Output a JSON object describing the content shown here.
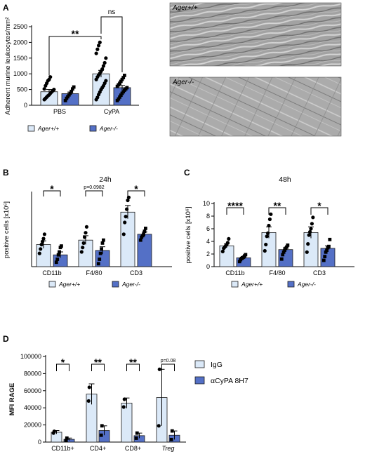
{
  "colors": {
    "light": "#dbe9f8",
    "dark": "#5470c6",
    "stroke": "#1a1a1a",
    "micro_bg": "#9d9d9d"
  },
  "chart_data": [
    {
      "panel": "A",
      "type": "bar",
      "ylabel": "Adherent murine leukocytes/mm²",
      "ylim": [
        0,
        2500
      ],
      "yticks": [
        0,
        500,
        1000,
        1500,
        2000,
        2500
      ],
      "categories": [
        "PBS",
        "CyPA"
      ],
      "legend": [
        "Ager+/+",
        "Ager-/-"
      ],
      "series": [
        {
          "name": "Ager+/+",
          "values": [
            430,
            1000
          ],
          "errors": [
            70,
            110
          ],
          "points": [
            [
              180,
              220,
              260,
              300,
              330,
              380,
              420,
              460,
              500,
              520,
              620,
              700,
              780,
              820,
              900
            ],
            [
              180,
              250,
              340,
              420,
              500,
              560,
              620,
              700,
              780,
              820,
              900,
              960,
              1020,
              1080,
              1150,
              1250,
              1350,
              1500,
              1650,
              1780,
              1900,
              2000
            ]
          ]
        },
        {
          "name": "Ager-/-",
          "values": [
            370,
            560
          ],
          "errors": [
            50,
            70
          ],
          "points": [
            [
              150,
              220,
              270,
              330,
              380,
              440,
              520,
              580
            ],
            [
              150,
              200,
              260,
              320,
              380,
              430,
              480,
              520,
              560,
              600,
              650,
              700,
              760,
              820,
              880,
              950
            ]
          ]
        }
      ],
      "annotations": [
        {
          "text": "**",
          "between": [
            "PBS Ager+/+",
            "CyPA Ager+/+"
          ]
        },
        {
          "text": "ns",
          "between": [
            "CyPA Ager+/+",
            "CyPA Ager-/-"
          ]
        }
      ]
    },
    {
      "panel": "B",
      "type": "bar",
      "title": "24h",
      "ylabel": "positive cells [x10⁶]",
      "ylim": [
        0,
        5
      ],
      "categories": [
        "CD11b",
        "F4/80",
        "CD3"
      ],
      "legend": [
        "Ager+/+",
        "Ager-/-"
      ],
      "series": [
        {
          "name": "Ager+/+",
          "values": [
            1.5,
            1.8,
            3.7
          ],
          "errors": [
            0.25,
            0.3,
            0.45
          ],
          "points": [
            [
              0.9,
              1.2,
              1.5,
              1.7,
              1.9,
              2.2
            ],
            [
              1.0,
              1.3,
              1.6,
              2.0,
              2.3,
              2.7
            ],
            [
              2.2,
              3.0,
              3.4,
              3.9,
              4.5,
              4.7
            ]
          ]
        },
        {
          "name": "Ager-/-",
          "values": [
            0.8,
            1.1,
            2.2
          ],
          "errors": [
            0.2,
            0.25,
            0.15
          ],
          "points": [
            [
              0.3,
              0.5,
              0.8,
              1.0,
              1.3,
              1.4
            ],
            [
              0.2,
              0.5,
              0.9,
              1.2,
              1.6,
              1.8
            ],
            [
              1.8,
              2.0,
              2.1,
              2.2,
              2.4,
              2.6
            ]
          ]
        }
      ],
      "annotations": [
        {
          "text": "*",
          "category": "CD11b"
        },
        {
          "text": "p=0.0982",
          "category": "F4/80"
        },
        {
          "text": "*",
          "category": "CD3"
        }
      ]
    },
    {
      "panel": "C",
      "type": "bar",
      "title": "48h",
      "ylabel": "positive cells [x10⁶]",
      "ylim": [
        0,
        10
      ],
      "yticks": [
        0,
        2,
        4,
        6,
        8,
        10
      ],
      "categories": [
        "CD11b",
        "F4/80",
        "CD3"
      ],
      "legend": [
        "Ager+/+",
        "Ager-/-"
      ],
      "series": [
        {
          "name": "Ager+/+",
          "values": [
            3.3,
            5.4,
            5.4
          ],
          "errors": [
            0.3,
            0.9,
            0.9
          ],
          "points": [
            [
              2.4,
              2.9,
              3.1,
              3.3,
              3.5,
              3.8,
              4.4
            ],
            [
              2.5,
              3.5,
              4.8,
              5.3,
              6.5,
              7.5,
              8.3
            ],
            [
              2.3,
              3.6,
              5.0,
              5.5,
              6.0,
              6.8,
              7.8
            ]
          ]
        },
        {
          "name": "Ager-/-",
          "values": [
            1.4,
            2.7,
            2.9
          ],
          "errors": [
            0.2,
            0.3,
            0.4
          ],
          "points": [
            [
              0.8,
              1.1,
              1.3,
              1.4,
              1.5,
              1.7,
              1.9
            ],
            [
              1.2,
              1.9,
              2.3,
              2.6,
              2.9,
              3.1,
              3.4
            ],
            [
              1.0,
              1.6,
              2.3,
              2.6,
              3.0,
              3.2,
              4.3
            ]
          ]
        }
      ],
      "annotations": [
        {
          "text": "****",
          "category": "CD11b"
        },
        {
          "text": "**",
          "category": "F4/80"
        },
        {
          "text": "*",
          "category": "CD3"
        }
      ]
    },
    {
      "panel": "D",
      "type": "bar",
      "ylabel": "MFI RAGE",
      "ylim": [
        0,
        100000
      ],
      "yticks": [
        0,
        20000,
        40000,
        60000,
        80000,
        100000
      ],
      "categories": [
        "CD11b+",
        "CD4+",
        "CD8+",
        "Treg"
      ],
      "legend": [
        "IgG",
        "αCyPA 8H7"
      ],
      "series": [
        {
          "name": "IgG",
          "values": [
            11500,
            56000,
            45500,
            52000
          ],
          "errors": [
            2000,
            12000,
            6000,
            33000
          ],
          "points": [
            [
              10500,
              12500
            ],
            [
              48000,
              64000
            ],
            [
              41000,
              50000
            ],
            [
              19000,
              85000
            ]
          ]
        },
        {
          "name": "αCyPA 8H7",
          "values": [
            3200,
            13500,
            7500,
            8000
          ],
          "errors": [
            1500,
            5500,
            3000,
            5000
          ],
          "points": [
            [
              1800,
              4600
            ],
            [
              8000,
              19000
            ],
            [
              4500,
              10500
            ],
            [
              3000,
              13000
            ]
          ]
        }
      ],
      "annotations": [
        {
          "text": "*",
          "category": "CD11b+"
        },
        {
          "text": "**",
          "category": "CD4+"
        },
        {
          "text": "**",
          "category": "CD8+"
        },
        {
          "text": "p=0.08",
          "category": "Treg"
        }
      ]
    }
  ],
  "labels": {
    "panel_a": "A",
    "panel_b": "B",
    "panel_c": "C",
    "panel_d": "D",
    "micro_top": "Ager+/+",
    "micro_bottom": "Ager-/-"
  }
}
